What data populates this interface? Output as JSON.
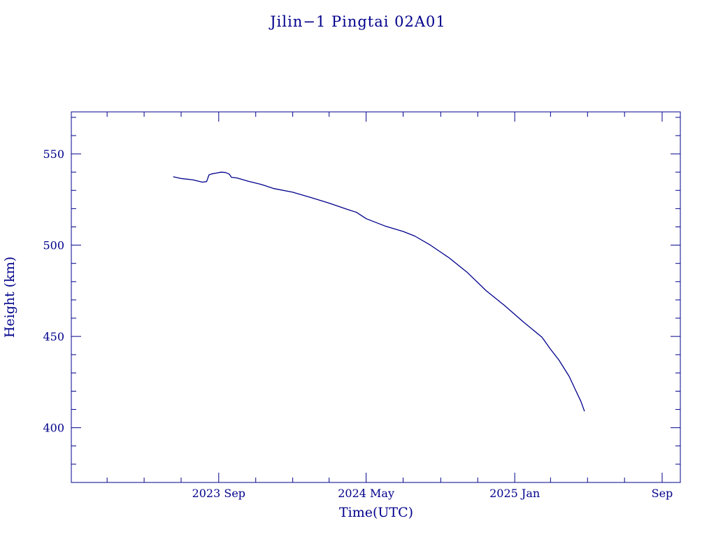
{
  "colors": {
    "ink": "#00008b",
    "background": "#ffffff"
  },
  "chart_data": {
    "type": "line",
    "title": "Jilin−1 Pingtai 02A01",
    "xlabel": "Time(UTC)",
    "ylabel": "Height (km)",
    "xlim": [
      "2023-01-01",
      "2025-10-01"
    ],
    "ylim": [
      370,
      573
    ],
    "x_ticks": [
      {
        "date": "2023-09-01",
        "label": "2023 Sep"
      },
      {
        "date": "2024-05-01",
        "label": "2024 May"
      },
      {
        "date": "2025-01-01",
        "label": "2025 Jan"
      },
      {
        "date": "2025-09-01",
        "label": "Sep"
      }
    ],
    "x_minor_ticks": [
      "2023-03-01",
      "2023-05-01",
      "2023-07-01",
      "2023-11-01",
      "2024-01-01",
      "2024-03-01",
      "2024-07-01",
      "2024-09-01",
      "2024-11-01",
      "2025-03-01",
      "2025-05-01",
      "2025-07-01"
    ],
    "y_ticks": [
      {
        "value": 400,
        "label": "400"
      },
      {
        "value": 450,
        "label": "450"
      },
      {
        "value": 500,
        "label": "500"
      },
      {
        "value": 550,
        "label": "550"
      }
    ],
    "y_minor_step": 10,
    "grid": false,
    "series": [
      {
        "x": [
          "2023-06-18",
          "2023-07-01",
          "2023-07-20",
          "2023-08-05",
          "2023-08-12",
          "2023-08-16",
          "2023-08-20",
          "2023-08-28",
          "2023-09-05",
          "2023-09-12",
          "2023-09-18",
          "2023-09-22",
          "2023-10-01",
          "2023-10-20",
          "2023-11-10",
          "2023-12-01",
          "2024-01-01",
          "2024-02-01",
          "2024-03-01",
          "2024-04-01",
          "2024-04-15",
          "2024-05-01",
          "2024-06-01",
          "2024-07-01",
          "2024-07-20",
          "2024-08-15",
          "2024-09-15",
          "2024-10-15",
          "2024-11-15",
          "2024-12-15",
          "2025-01-15",
          "2025-02-15",
          "2025-03-01",
          "2025-03-15",
          "2025-04-01",
          "2025-04-10",
          "2025-04-20",
          "2025-04-26"
        ],
        "y": [
          537.5,
          536.5,
          535.8,
          534.5,
          534.8,
          538.5,
          539.0,
          539.5,
          540.0,
          539.8,
          539.0,
          537.2,
          536.8,
          535.0,
          533.3,
          531.0,
          529.0,
          526.0,
          523.0,
          519.5,
          518.0,
          514.5,
          510.5,
          507.5,
          505.0,
          500.0,
          493.0,
          485.0,
          475.0,
          467.0,
          458.0,
          449.5,
          443.0,
          437.0,
          428.0,
          421.5,
          414.5,
          409.0
        ]
      }
    ]
  }
}
